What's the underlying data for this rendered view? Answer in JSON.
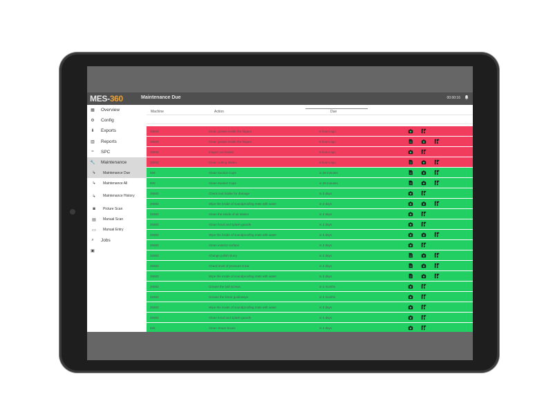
{
  "app": {
    "logo_text": "MES-",
    "logo_num": "360",
    "page_title": "Maintenance Due",
    "clock": "00:00:16"
  },
  "sidebar": {
    "items": [
      {
        "label": "Overview",
        "icon": "grid-icon",
        "sub": false
      },
      {
        "label": "Config",
        "icon": "gear-icon",
        "sub": false
      },
      {
        "label": "Exports",
        "icon": "download-icon",
        "sub": false
      },
      {
        "label": "Reports",
        "icon": "bar-chart-icon",
        "sub": false
      },
      {
        "label": "SPC",
        "icon": "spc-icon",
        "sub": false
      },
      {
        "label": "Maintenance",
        "icon": "wrench-icon",
        "sub": false,
        "active": true
      },
      {
        "label": "Maintenance Due",
        "icon": "subarrow-icon",
        "sub": true,
        "active": true
      },
      {
        "label": "Maintenance All",
        "icon": "subarrow-icon",
        "sub": true
      },
      {
        "label": "Maintenance History",
        "icon": "subarrow-icon",
        "sub": true
      },
      {
        "label": "Picture Scan",
        "icon": "camera-icon",
        "sub": true
      },
      {
        "label": "Manual Scan",
        "icon": "barcode-icon",
        "sub": true
      },
      {
        "label": "Manual Entry",
        "icon": "keyboard-icon",
        "sub": true
      },
      {
        "label": "Jobs",
        "icon": "search-icon",
        "sub": false
      },
      {
        "label": "",
        "icon": "badge-icon",
        "sub": false
      }
    ]
  },
  "table": {
    "headers": {
      "machine": "Machine",
      "action": "Action",
      "due": "Due"
    },
    "rows": [
      {
        "status": "red",
        "machine": "26583",
        "action": "Clean grease inside the fingers",
        "due": "8 hours ago",
        "actions": [
          "camera-icon",
          "scan-icon"
        ]
      },
      {
        "status": "red",
        "machine": "26583",
        "action": "Clean grease inside the fingers",
        "due": "8 hours ago",
        "actions": [
          "document-icon",
          "camera-icon",
          "scan-icon"
        ]
      },
      {
        "status": "red",
        "machine": "26582",
        "action": "Inspect cut blades",
        "due": "8 hours ago",
        "actions": [
          "camera-icon",
          "scan-icon"
        ]
      },
      {
        "status": "red",
        "machine": "26583",
        "action": "Clean cutting blades",
        "due": "8 hours ago",
        "actions": [
          "document-icon",
          "camera-icon",
          "scan-icon"
        ]
      },
      {
        "status": "green",
        "machine": "599",
        "action": "Clean Suction Cups",
        "due": "in 28 minutes",
        "actions": [
          "document-icon",
          "camera-icon",
          "scan-icon"
        ]
      },
      {
        "status": "green",
        "machine": "600",
        "action": "Clean Suction Cups",
        "due": "in 28 minutes",
        "actions": [
          "document-icon",
          "camera-icon",
          "scan-icon"
        ]
      },
      {
        "status": "green",
        "machine": "26582",
        "action": "Check tool holder for damage",
        "due": "in 2 days",
        "actions": [
          "camera-icon",
          "scan-icon"
        ]
      },
      {
        "status": "green",
        "machine": "26583",
        "action": "Wipe the inside of soundproofing mats with water",
        "due": "in 2 days",
        "actions": [
          "camera-icon",
          "camera-icon",
          "scan-icon"
        ]
      },
      {
        "status": "green",
        "machine": "26583",
        "action": "Clean the inside of air station",
        "due": "in 2 days",
        "actions": [
          "camera-icon",
          "scan-icon"
        ]
      },
      {
        "status": "green",
        "machine": "26583",
        "action": "Clean hood and splash guards",
        "due": "in 2 days",
        "actions": [
          "camera-icon",
          "scan-icon"
        ]
      },
      {
        "status": "green",
        "machine": "26583",
        "action": "Wipe the inside of soundproofing mats with water",
        "due": "in 2 days",
        "actions": [
          "camera-icon",
          "camera-icon",
          "scan-icon"
        ]
      },
      {
        "status": "green",
        "machine": "26583",
        "action": "Clean exterior surface",
        "due": "in 2 days",
        "actions": [
          "camera-icon",
          "scan-icon"
        ]
      },
      {
        "status": "green",
        "machine": "26583",
        "action": "Change polish slurry",
        "due": "in 2 days",
        "actions": [
          "document-icon",
          "camera-icon",
          "scan-icon"
        ]
      },
      {
        "status": "green",
        "machine": "26583",
        "action": "Check level of pressure 8 bar",
        "due": "in 2 days",
        "actions": [
          "document-icon",
          "camera-icon",
          "scan-icon"
        ]
      },
      {
        "status": "green",
        "machine": "26583",
        "action": "Wipe the inside of soundproofing mats with water",
        "due": "in 2 days",
        "actions": [
          "document-icon",
          "camera-icon",
          "scan-icon"
        ]
      },
      {
        "status": "green",
        "machine": "26583",
        "action": "Grease the ball screws",
        "due": "in 2 months",
        "actions": [
          "camera-icon",
          "scan-icon"
        ]
      },
      {
        "status": "green",
        "machine": "26583",
        "action": "Grease the linear guideways",
        "due": "in 2 months",
        "actions": [
          "camera-icon",
          "scan-icon"
        ]
      },
      {
        "status": "green",
        "machine": "26583",
        "action": "Wipe the inside of soundproofing mats with water",
        "due": "in 3 days",
        "actions": [
          "camera-icon",
          "scan-icon"
        ]
      },
      {
        "status": "green",
        "machine": "26583",
        "action": "Clean hood and splash guards",
        "due": "in 4 days",
        "actions": [
          "camera-icon",
          "scan-icon"
        ]
      },
      {
        "status": "green",
        "machine": "585",
        "action": "Clean steam boxes",
        "due": "in 4 days",
        "actions": [
          "camera-icon",
          "scan-icon"
        ]
      }
    ]
  },
  "colors": {
    "overdue": "#f23c5e",
    "upcoming": "#22cf63",
    "topbar": "#4f4f4f",
    "accent": "#e8a33a"
  }
}
